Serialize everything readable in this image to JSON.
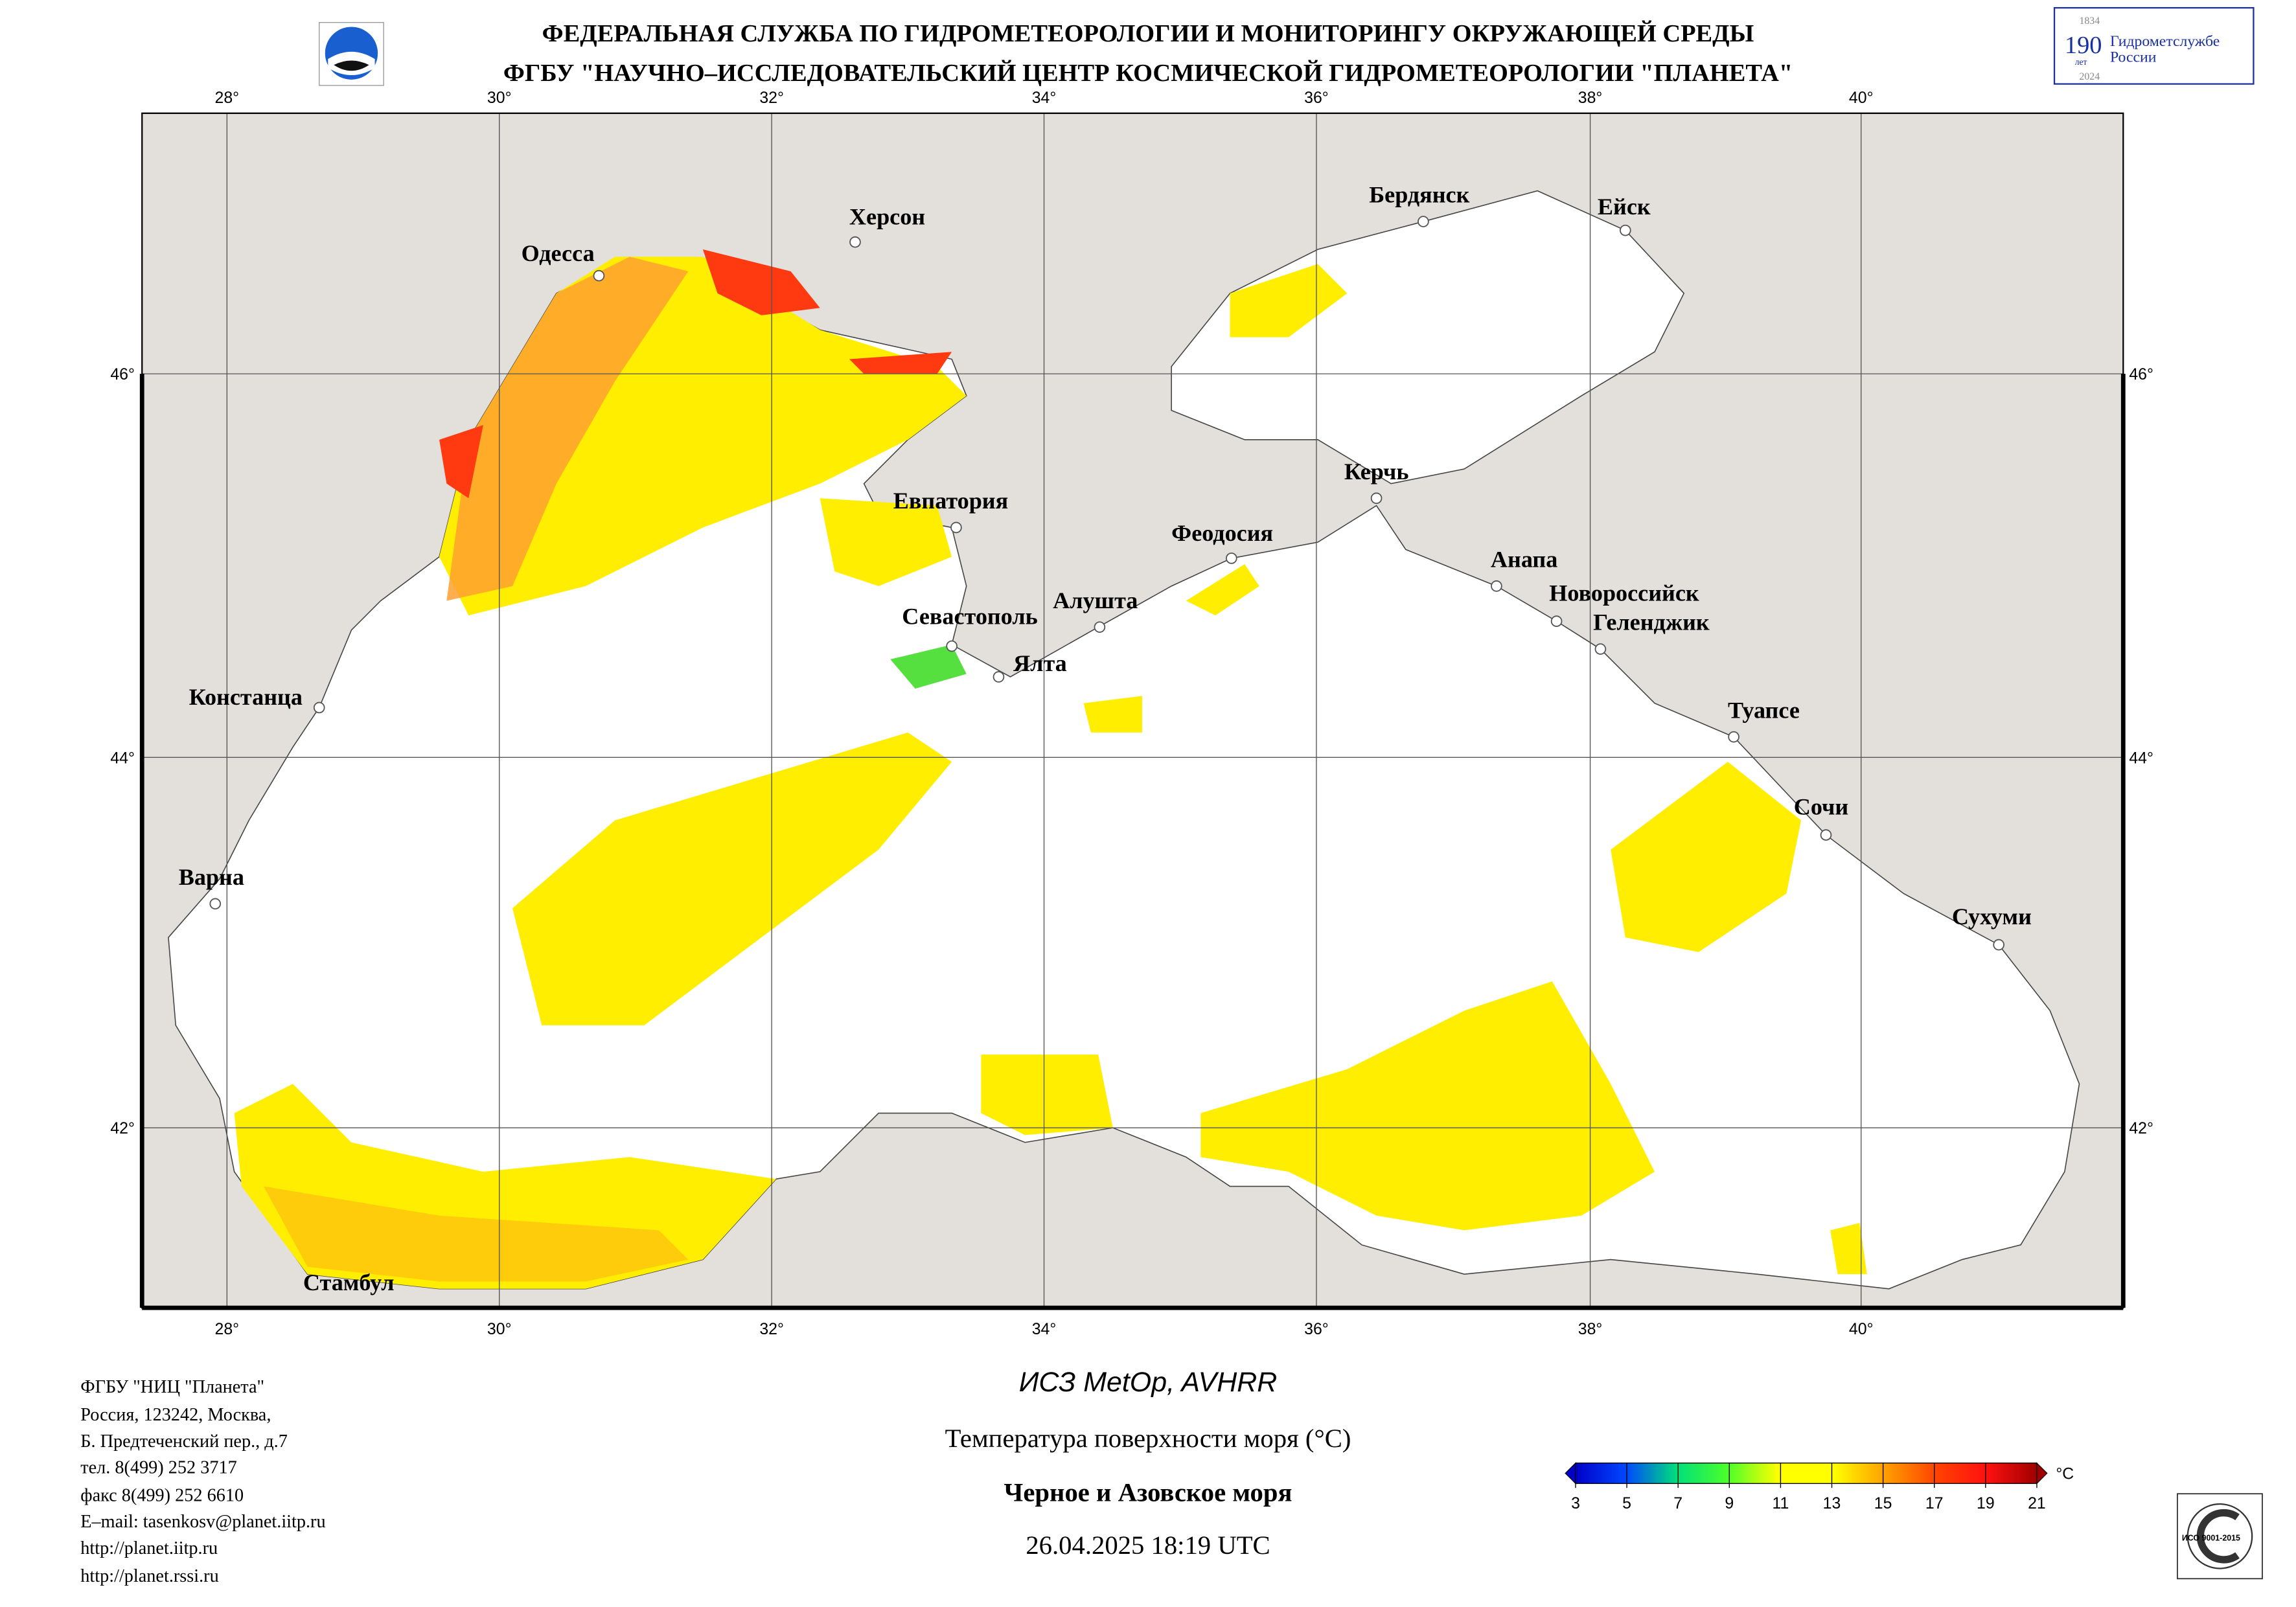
{
  "header": {
    "line1": "ФЕДЕРАЛЬНАЯ СЛУЖБА ПО ГИДРОМЕТЕОРОЛОГИИ И МОНИТОРИНГУ ОКРУЖАЮЩЕЙ СРЕДЫ",
    "line2": "ФГБУ \"НАУЧНО–ИССЛЕДОВАТЕЛЬСКИЙ ЦЕНТР КОСМИЧЕСКОЙ ГИДРОМЕТЕОРОЛОГИИ \"ПЛАНЕТА\""
  },
  "anniversary_logo": {
    "year_start": "1834",
    "number": "190",
    "unit": "лет",
    "year_end": "2024",
    "text_line1": "Гидрометслужбе",
    "text_line2": "России",
    "color": "#1a2fa0"
  },
  "map": {
    "lon_labels": [
      "28°",
      "30°",
      "32°",
      "34°",
      "36°",
      "38°",
      "40°"
    ],
    "lat_labels": [
      "46°",
      "44°",
      "42°"
    ],
    "land_color": "#e3e0dc",
    "sea_nodata_color": "#ffffff",
    "cities": [
      {
        "name": "Одесса"
      },
      {
        "name": "Херсон"
      },
      {
        "name": "Бердянск"
      },
      {
        "name": "Ейск"
      },
      {
        "name": "Евпатория"
      },
      {
        "name": "Феодосия"
      },
      {
        "name": "Керчь"
      },
      {
        "name": "Анапа"
      },
      {
        "name": "Новороссийск"
      },
      {
        "name": "Геленджик"
      },
      {
        "name": "Севастополь"
      },
      {
        "name": "Алушта"
      },
      {
        "name": "Ялта"
      },
      {
        "name": "Констанца"
      },
      {
        "name": "Туапсе"
      },
      {
        "name": "Сочи"
      },
      {
        "name": "Варна"
      },
      {
        "name": "Сухуми"
      },
      {
        "name": "Стамбул"
      }
    ]
  },
  "footer_left": [
    "ФГБУ \"НИЦ \"Планета\"",
    "Россия, 123242, Москва,",
    "Б. Предтеченский пер., д.7",
    "тел. 8(499) 252 3717",
    "факс 8(499) 252 6610",
    "E–mail: tasenkosv@planet.iitp.ru",
    "http://planet.iitp.ru",
    "http://planet.rssi.ru"
  ],
  "footer_center": {
    "satellite": "ИСЗ MetOp, AVHRR",
    "parameter": "Температура поверхности моря (°С)",
    "region": "Черное и Азовское моря",
    "datetime": "26.04.2025 18:19 UTC"
  },
  "colorbar": {
    "unit": "°С",
    "ticks": [
      "3",
      "5",
      "7",
      "9",
      "11",
      "13",
      "15",
      "17",
      "19",
      "21"
    ],
    "colors": [
      "#0000c8",
      "#0048ff",
      "#00e07a",
      "#4cff2a",
      "#ffff00",
      "#ffff00",
      "#ffa000",
      "#ff4400",
      "#ff1010",
      "#a00000"
    ]
  },
  "iso_badge": {
    "text": "ИСО 9001-2015"
  }
}
